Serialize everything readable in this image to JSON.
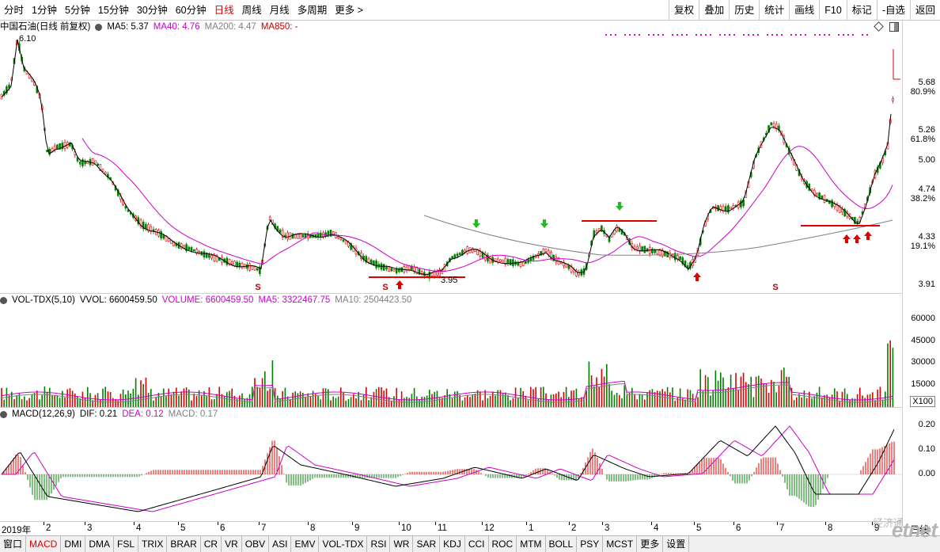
{
  "toolbar": {
    "periods": [
      "分时",
      "1分钟",
      "5分钟",
      "15分钟",
      "30分钟",
      "60分钟",
      "日线",
      "周线",
      "月线",
      "多周期",
      "更多 >"
    ],
    "active_period": "日线",
    "right_buttons": [
      "复权",
      "叠加",
      "历史",
      "统计",
      "画线",
      "F10",
      "标记",
      "-自选",
      "返回"
    ]
  },
  "price_panel": {
    "title": "中国石油(日线 前复权)",
    "ma5": "MA5: 5.37",
    "ma40": "MA40: 4.76",
    "ma200": "MA200: 4.47",
    "ma850": "MA850: -",
    "high_label": "6.10",
    "low_label": "3.95",
    "price_ticks": [
      "5.68",
      "5.26",
      "5.00",
      "4.74",
      "4.33",
      "3.91"
    ],
    "pct_ticks": [
      "80.9%",
      "61.8%",
      "38.2%",
      "19.1%"
    ],
    "colors": {
      "ma5": "#000000",
      "ma40": "#cc00cc",
      "ma200": "#808080",
      "up": "#e00000",
      "down": "#008000",
      "signal": "#e00000"
    }
  },
  "volume_panel": {
    "title": "VOL-TDX(5,10)",
    "vvol": "VVOL: 6600459.50",
    "volume": "VOLUME: 6600459.50",
    "ma5": "MA5: 3322467.75",
    "ma10": "MA10: 2504423.50",
    "ticks": [
      "60000",
      "45000",
      "30000",
      "15000"
    ],
    "unit": "X100"
  },
  "macd_panel": {
    "title": "MACD(12,26,9)",
    "dif": "DIF: 0.21",
    "dea": "DEA: 0.12",
    "macd": "MACD: 0.17",
    "ticks": [
      "0.20",
      "0.10",
      "0.00"
    ]
  },
  "date_axis": {
    "year": "2019年",
    "months": [
      "2",
      "3",
      "4",
      "5",
      "6",
      "7",
      "8",
      "9",
      "10",
      "11",
      "12",
      "1",
      "2",
      "3",
      "4",
      "5",
      "6",
      "7",
      "8",
      "9"
    ],
    "period_label": "日线"
  },
  "bottom_tabs": {
    "items": [
      "窗口",
      "MACD",
      "DMI",
      "DMA",
      "FSL",
      "TRIX",
      "BRAR",
      "CR",
      "VR",
      "OBV",
      "ASI",
      "EMV",
      "VOL-TDX",
      "RSI",
      "WR",
      "SAR",
      "KDJ",
      "CCI",
      "ROC",
      "MTM",
      "BOLL",
      "PSY",
      "MCST",
      "更多",
      "设置"
    ],
    "active": "MACD"
  },
  "watermark": {
    "logo": "etnet",
    "sub": "经济通"
  }
}
